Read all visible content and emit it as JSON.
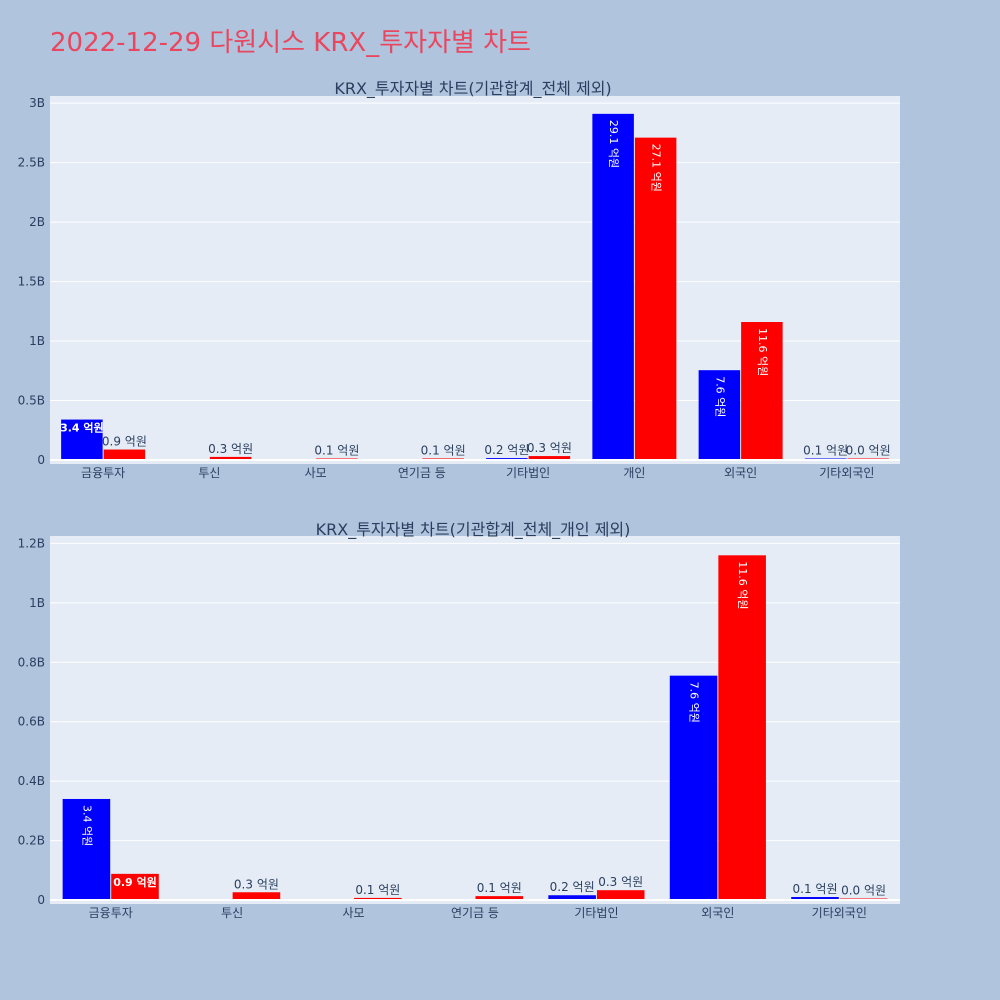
{
  "page": {
    "title": "2022-12-29 다원시스 KRX_투자자별 차트"
  },
  "colors": {
    "series_a": "#0000ff",
    "series_b": "#ff0000",
    "plot_bg": "#e5ecf6",
    "page_bg": "#b0c4de",
    "title": "#e8475f"
  },
  "chart_data": [
    {
      "type": "bar",
      "title": "KRX_투자자별 차트(기관합계_전체 제외)",
      "categories": [
        "금융투자",
        "투신",
        "사모",
        "연기금 등",
        "기타법인",
        "개인",
        "외국인",
        "기타외국인"
      ],
      "series": [
        {
          "values": [
            340000000,
            0,
            0,
            0,
            16000000,
            2910000000,
            755000000,
            10000000
          ],
          "labels": [
            "3.4 억원",
            "",
            "",
            "",
            "0.2 억원",
            "29.1 억원",
            "7.6 억원",
            "0.1 억원"
          ]
        },
        {
          "values": [
            88000000,
            26000000,
            7000000,
            13000000,
            33000000,
            2710000000,
            1160000000,
            3000000
          ],
          "labels": [
            "0.9 억원",
            "0.3 억원",
            "0.1 억원",
            "0.1 억원",
            "0.3 억원",
            "27.1 억원",
            "11.6 억원",
            "0.0 억원"
          ]
        }
      ],
      "yticks": [
        0,
        500000000,
        1000000000,
        1500000000,
        2000000000,
        2500000000,
        3000000000
      ],
      "ytick_labels": [
        "0",
        "0.5B",
        "1B",
        "1.5B",
        "2B",
        "2.5B",
        "3B"
      ],
      "ylim": [
        0,
        3060000000
      ],
      "grid": true
    },
    {
      "type": "bar",
      "title": "KRX_투자자별 차트(기관합계_전체_개인 제외)",
      "categories": [
        "금융투자",
        "투신",
        "사모",
        "연기금 등",
        "기타법인",
        "외국인",
        "기타외국인"
      ],
      "series": [
        {
          "values": [
            340000000,
            0,
            0,
            0,
            16000000,
            755000000,
            10000000
          ],
          "labels": [
            "3.4 억원",
            "",
            "",
            "",
            "0.2 억원",
            "7.6 억원",
            "0.1 억원"
          ]
        },
        {
          "values": [
            88000000,
            26000000,
            7000000,
            13000000,
            33000000,
            1160000000,
            3000000
          ],
          "labels": [
            "0.9 억원",
            "0.3 억원",
            "0.1 억원",
            "0.1 억원",
            "0.3 억원",
            "11.6 억원",
            "0.0 억원"
          ]
        }
      ],
      "yticks": [
        0,
        200000000,
        400000000,
        600000000,
        800000000,
        1000000000,
        1200000000
      ],
      "ytick_labels": [
        "0",
        "0.2B",
        "0.4B",
        "0.6B",
        "0.8B",
        "1B",
        "1.2B"
      ],
      "ylim": [
        0,
        1225000000
      ],
      "grid": true
    }
  ]
}
